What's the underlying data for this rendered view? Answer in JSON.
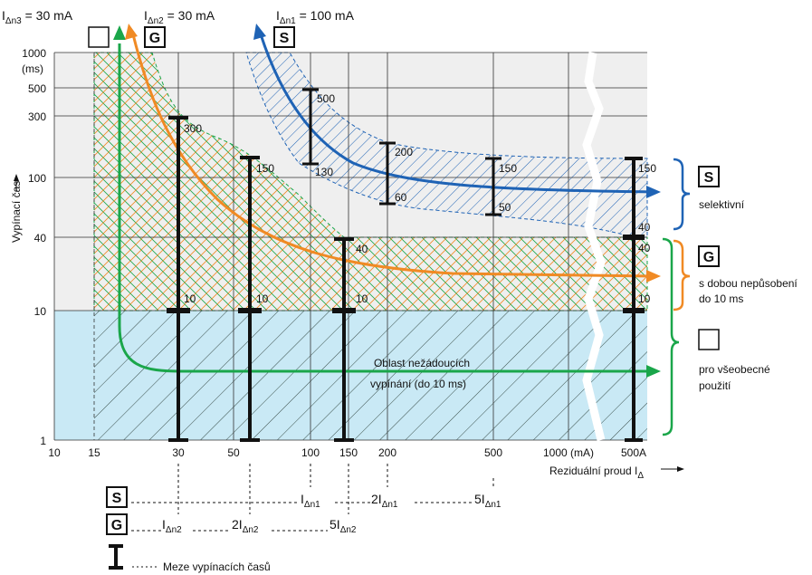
{
  "headers": {
    "n3": {
      "main": "I",
      "sub": "Δn3",
      "rest": " = 30 mA"
    },
    "n2": {
      "main": "I",
      "sub": "Δn2",
      "rest": " = 30 mA"
    },
    "n1": {
      "main": "I",
      "sub": "Δn1",
      "rest": " = 100 mA"
    }
  },
  "type_boxes": {
    "general": "",
    "g": "G",
    "s": "S"
  },
  "y_axis": {
    "title": "Vypínací čas",
    "unit": "(ms)",
    "ticks": [
      "1000",
      "500",
      "300",
      "100",
      "40",
      "10",
      "1"
    ]
  },
  "x_axis": {
    "title": "Reziduální proud I",
    "title_sub": "Δ",
    "ticks": [
      "10",
      "15",
      "30",
      "50",
      "100",
      "150",
      "200",
      "500",
      "1000 (mA)",
      "500A"
    ]
  },
  "region_label": {
    "line1": "Oblast nežádoucích",
    "line2": "vypínání (do 10 ms)"
  },
  "limit_bars": [
    {
      "top": "300",
      "bottom": "10"
    },
    {
      "top": "150",
      "bottom": "10"
    },
    {
      "top": "40",
      "bottom": "10"
    },
    {
      "top": "500",
      "bottom": "130"
    },
    {
      "top": "200",
      "bottom": "60"
    },
    {
      "top": "150",
      "bottom": "50"
    },
    {
      "top": "150",
      "bottom": "40"
    },
    {
      "top": "40",
      "bottom": "10"
    }
  ],
  "legend": {
    "s": {
      "letter": "S",
      "text": "selektivní"
    },
    "g": {
      "letter": "G",
      "line1": "s dobou nepůsobení",
      "line2": "do 10 ms"
    },
    "general": {
      "letter": "",
      "line1": "pro všeobecné",
      "line2": "použití"
    }
  },
  "bottom": {
    "s_letter": "S",
    "g_letter": "G",
    "n1": {
      "x1": {
        "main": "I",
        "sub": "Δn1"
      },
      "x2": {
        "main": "2I",
        "sub": "Δn1"
      },
      "x5": {
        "main": "5I",
        "sub": "Δn1"
      }
    },
    "n2": {
      "x1": {
        "main": "I",
        "sub": "Δn2"
      },
      "x2": {
        "main": "2I",
        "sub": "Δn2"
      },
      "x5": {
        "main": "5I",
        "sub": "Δn2"
      }
    },
    "bar_legend": "Meze vypínacích časů"
  },
  "colors": {
    "green": "#1aa64a",
    "orange": "#f08a24",
    "blue": "#1f63b5",
    "light_blue": "#c9e9f5",
    "grey": "#efefef"
  }
}
